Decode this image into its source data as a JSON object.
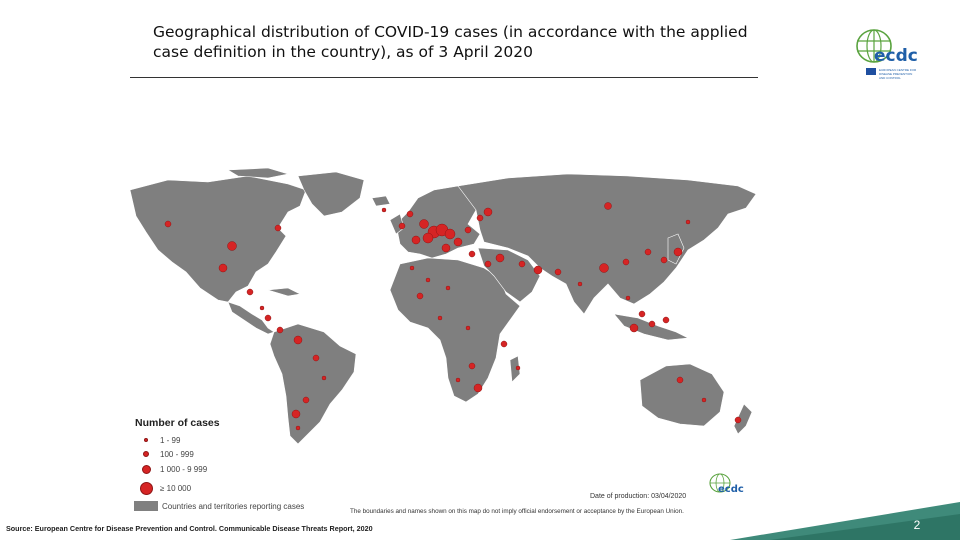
{
  "slide": {
    "title": "Geographical distribution of COVID-19 cases (in accordance with the applied case definition in the country), as of 3 April 2020",
    "page_number": "2"
  },
  "logo_top": {
    "icon": "ecdc-logo-icon",
    "text": "ecdc",
    "subtitle_lines": [
      "EUROPEAN CENTRE FOR",
      "DISEASE PREVENTION",
      "AND CONTROL"
    ]
  },
  "map": {
    "land_color": "#7f7f7f",
    "marker_color": "#d62424",
    "legend": {
      "title": "Number of cases",
      "items": [
        {
          "label": "1 - 99",
          "size": "smallest"
        },
        {
          "label": "100 - 999",
          "size": "small"
        },
        {
          "label": "1 000 - 9 999",
          "size": "medium"
        },
        {
          "label": "≥ 10 000",
          "size": "large"
        },
        {
          "label": "Countries and territories reporting cases",
          "size": "swatch"
        }
      ]
    },
    "date_of_production": "Date of production: 03/04/2020",
    "disclaimer": "The boundaries and names shown on this map do not imply official endorsement or acceptance by the European Union.",
    "small_logo_text": "ecdc"
  },
  "source": "Source: European Centre for Disease Prevention and Control. Communicable Disease Threats Report, 2020",
  "colors": {
    "accent_green": "#5aa33f",
    "accent_blue": "#1f5fa8",
    "band_teal": "#3f8a7a"
  }
}
